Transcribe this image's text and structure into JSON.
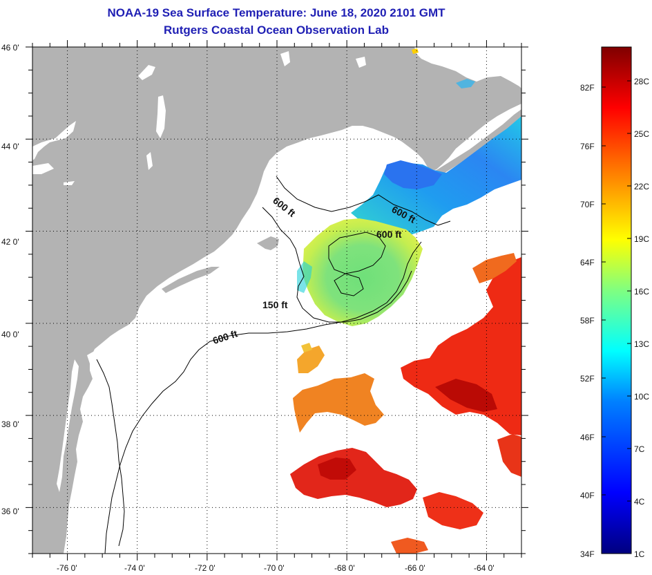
{
  "title": "NOAA-19 Sea Surface Temperature:  June 18, 2020 2101 GMT",
  "subtitle": "Rutgers Coastal Ocean Observation Lab",
  "map": {
    "lon_range": [
      -77,
      -63
    ],
    "lat_range": [
      35,
      46
    ],
    "lat_ticks": [
      "46 0'",
      "44 0'",
      "42 0'",
      "40 0'",
      "38 0'",
      "36 0'"
    ],
    "lon_ticks": [
      "-76 0'",
      "-74 0'",
      "-72 0'",
      "-70 0'",
      "-68 0'",
      "-66 0'",
      "-64 0'"
    ],
    "land_color": "#b3b3b3",
    "ocean_color": "#ffffff",
    "contour_labels": [
      "600 ft",
      "600 ft",
      "600 ft",
      "150 ft",
      "600 ft"
    ]
  },
  "colorbar": {
    "f_labels": [
      "82F",
      "76F",
      "70F",
      "64F",
      "58F",
      "52F",
      "46F",
      "40F",
      "34F"
    ],
    "c_labels": [
      "28C",
      "25C",
      "22C",
      "19C",
      "16C",
      "13C",
      "10C",
      "7C",
      "4C",
      "1C"
    ],
    "colors": [
      "#00007f",
      "#0000ff",
      "#0080ff",
      "#00ffff",
      "#80ff80",
      "#ffff00",
      "#ff8000",
      "#ff0000",
      "#7f0000"
    ]
  }
}
